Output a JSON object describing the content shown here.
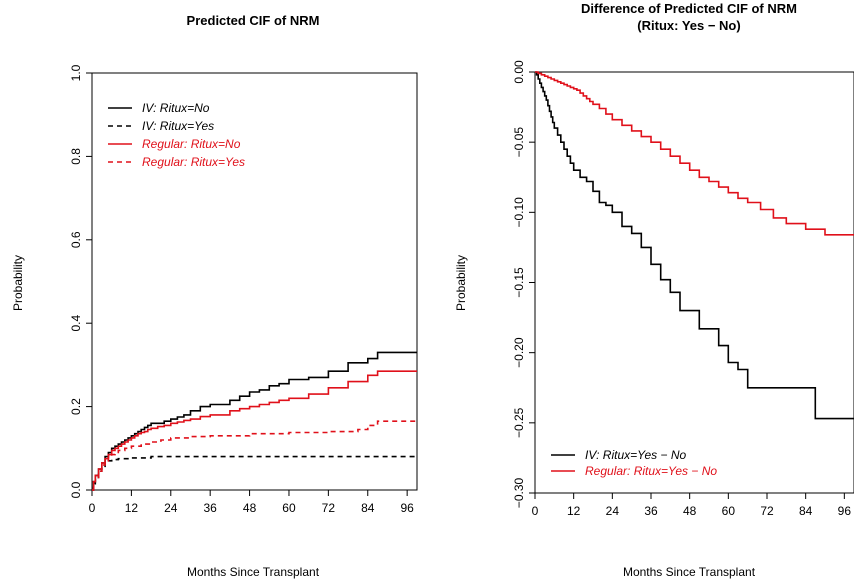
{
  "chart_data": [
    {
      "type": "line",
      "step": true,
      "title": "Predicted CIF of NRM",
      "xlabel": "Months Since Transplant",
      "ylabel": "Probability",
      "xlim": [
        0,
        99
      ],
      "ylim": [
        0,
        1.0
      ],
      "xticks": [
        "0",
        "12",
        "24",
        "36",
        "48",
        "60",
        "72",
        "84",
        "96"
      ],
      "yticks": [
        "0.0",
        "0.2",
        "0.4",
        "0.6",
        "0.8",
        "1.0"
      ],
      "legend_position": "top-left",
      "series": [
        {
          "name": "IV: Ritux=No",
          "color": "#000000",
          "dash": "solid",
          "x": [
            0,
            0.5,
            1,
            2,
            3,
            4,
            5,
            6,
            7,
            8,
            9,
            10,
            11,
            12,
            13,
            14,
            15,
            16,
            17,
            18,
            20,
            22,
            24,
            26,
            28,
            30,
            33,
            36,
            42,
            45,
            48,
            51,
            54,
            57,
            60,
            66,
            72,
            78,
            84,
            87,
            99
          ],
          "y": [
            0,
            0.02,
            0.035,
            0.05,
            0.065,
            0.08,
            0.09,
            0.1,
            0.105,
            0.11,
            0.115,
            0.12,
            0.125,
            0.13,
            0.135,
            0.14,
            0.145,
            0.15,
            0.155,
            0.16,
            0.16,
            0.165,
            0.17,
            0.175,
            0.18,
            0.19,
            0.2,
            0.205,
            0.215,
            0.225,
            0.235,
            0.24,
            0.25,
            0.255,
            0.265,
            0.27,
            0.285,
            0.305,
            0.315,
            0.33,
            0.33
          ]
        },
        {
          "name": "IV: Ritux=Yes",
          "color": "#000000",
          "dash": "dashed",
          "x": [
            0,
            0.5,
            1,
            2,
            3,
            4,
            5,
            6,
            8,
            12,
            18,
            24,
            99
          ],
          "y": [
            0,
            0.015,
            0.03,
            0.045,
            0.055,
            0.065,
            0.07,
            0.073,
            0.075,
            0.077,
            0.08,
            0.08,
            0.08
          ]
        },
        {
          "name": "Regular: Ritux=No",
          "color": "#e0101a",
          "dash": "solid",
          "x": [
            0,
            0.5,
            1,
            2,
            3,
            4,
            5,
            6,
            7,
            8,
            9,
            10,
            11,
            12,
            13,
            14,
            15,
            16,
            17,
            18,
            20,
            22,
            24,
            26,
            28,
            30,
            33,
            36,
            42,
            45,
            48,
            51,
            54,
            57,
            60,
            66,
            72,
            78,
            84,
            87,
            99
          ],
          "y": [
            0,
            0.02,
            0.035,
            0.05,
            0.065,
            0.075,
            0.085,
            0.095,
            0.1,
            0.105,
            0.11,
            0.115,
            0.12,
            0.125,
            0.13,
            0.135,
            0.138,
            0.14,
            0.145,
            0.148,
            0.152,
            0.155,
            0.16,
            0.163,
            0.167,
            0.17,
            0.176,
            0.18,
            0.19,
            0.195,
            0.2,
            0.205,
            0.21,
            0.215,
            0.22,
            0.23,
            0.245,
            0.26,
            0.275,
            0.285,
            0.285
          ]
        },
        {
          "name": "Regular: Ritux=Yes",
          "color": "#e0101a",
          "dash": "dashed",
          "x": [
            0,
            0.5,
            1,
            2,
            3,
            4,
            5,
            6,
            7,
            8,
            10,
            12,
            15,
            18,
            21,
            24,
            30,
            36,
            48,
            60,
            72,
            81,
            84,
            87,
            99
          ],
          "y": [
            0,
            0.02,
            0.03,
            0.045,
            0.06,
            0.07,
            0.08,
            0.085,
            0.09,
            0.095,
            0.1,
            0.105,
            0.11,
            0.115,
            0.12,
            0.125,
            0.128,
            0.13,
            0.135,
            0.138,
            0.14,
            0.145,
            0.155,
            0.165,
            0.17
          ]
        }
      ]
    },
    {
      "type": "line",
      "step": true,
      "title": "Difference of Predicted CIF of NRM",
      "subtitle": "(Ritux: Yes − No)",
      "xlabel": "Months Since Transplant",
      "ylabel": "Probability",
      "xlim": [
        0,
        99
      ],
      "ylim": [
        -0.3,
        0.0
      ],
      "xticks": [
        "0",
        "12",
        "24",
        "36",
        "48",
        "60",
        "72",
        "84",
        "96"
      ],
      "yticks": [
        "0.00",
        "−0.05",
        "−0.10",
        "−0.15",
        "−0.20",
        "−0.25",
        "−0.30"
      ],
      "legend_position": "bottom-left",
      "series": [
        {
          "name": "IV: Ritux=Yes − No",
          "color": "#000000",
          "dash": "solid",
          "x": [
            0,
            0.5,
            1,
            1.5,
            2,
            2.5,
            3,
            3.5,
            4,
            4.5,
            5,
            5.5,
            6,
            7,
            8,
            9,
            10,
            11,
            12,
            14,
            16,
            18,
            20,
            22,
            24,
            27,
            30,
            33,
            36,
            39,
            42,
            45,
            51,
            57,
            60,
            63,
            66,
            72,
            78,
            87,
            99
          ],
          "y": [
            0,
            -0.002,
            -0.005,
            -0.008,
            -0.011,
            -0.014,
            -0.017,
            -0.02,
            -0.024,
            -0.028,
            -0.032,
            -0.036,
            -0.04,
            -0.045,
            -0.05,
            -0.055,
            -0.06,
            -0.065,
            -0.07,
            -0.075,
            -0.078,
            -0.085,
            -0.093,
            -0.095,
            -0.1,
            -0.11,
            -0.115,
            -0.125,
            -0.137,
            -0.148,
            -0.157,
            -0.17,
            -0.183,
            -0.195,
            -0.207,
            -0.212,
            -0.225,
            -0.225,
            -0.225,
            -0.247,
            -0.247
          ]
        },
        {
          "name": "Regular: Ritux=Yes − No",
          "color": "#e0101a",
          "dash": "solid",
          "x": [
            0,
            1,
            2,
            3,
            4,
            5,
            6,
            7,
            8,
            9,
            10,
            11,
            12,
            13,
            14,
            15,
            16,
            17,
            18,
            20,
            22,
            24,
            27,
            30,
            33,
            36,
            39,
            42,
            45,
            48,
            51,
            54,
            57,
            60,
            63,
            66,
            70,
            74,
            78,
            84,
            90,
            99
          ],
          "y": [
            0,
            -0.001,
            -0.002,
            -0.003,
            -0.004,
            -0.005,
            -0.006,
            -0.007,
            -0.008,
            -0.009,
            -0.01,
            -0.011,
            -0.012,
            -0.013,
            -0.015,
            -0.017,
            -0.019,
            -0.021,
            -0.023,
            -0.026,
            -0.03,
            -0.034,
            -0.038,
            -0.042,
            -0.046,
            -0.05,
            -0.055,
            -0.06,
            -0.065,
            -0.07,
            -0.075,
            -0.078,
            -0.082,
            -0.086,
            -0.09,
            -0.093,
            -0.098,
            -0.104,
            -0.108,
            -0.112,
            -0.116,
            -0.116
          ]
        }
      ]
    }
  ]
}
